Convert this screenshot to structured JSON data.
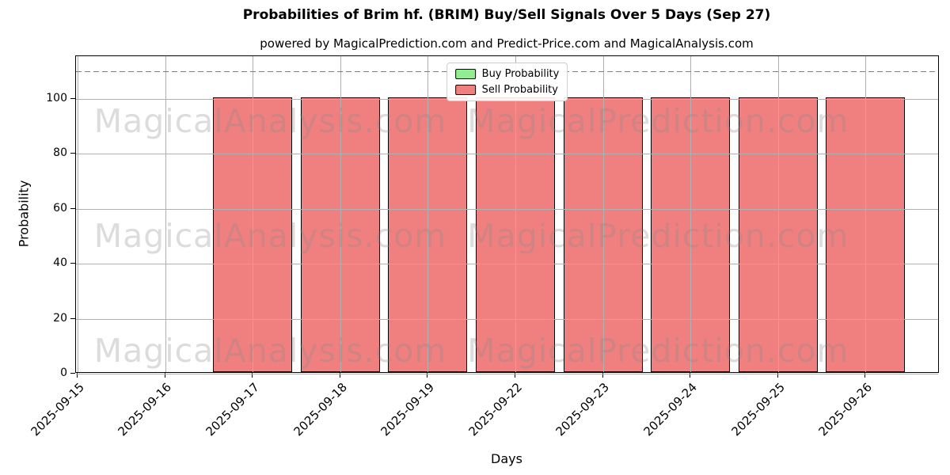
{
  "chart_data": {
    "type": "bar",
    "title": "Probabilities of Brim hf. (BRIM) Buy/Sell Signals Over 5 Days (Sep 27)",
    "subtitle": "powered by MagicalPrediction.com and Predict-Price.com and MagicalAnalysis.com",
    "xlabel": "Days",
    "ylabel": "Probability",
    "categories": [
      "2025-09-15",
      "2025-09-16",
      "2025-09-17",
      "2025-09-18",
      "2025-09-19",
      "2025-09-22",
      "2025-09-23",
      "2025-09-24",
      "2025-09-25",
      "2025-09-26"
    ],
    "series": [
      {
        "name": "Buy Probability",
        "color": "#90ee90",
        "values": [
          0,
          0,
          0,
          0,
          0,
          0,
          0,
          0,
          0,
          0
        ]
      },
      {
        "name": "Sell Probability",
        "color": "#f08080",
        "values": [
          0,
          0,
          100,
          100,
          100,
          100,
          100,
          100,
          100,
          100
        ]
      }
    ],
    "ylim": [
      0,
      115.4
    ],
    "yticks": [
      0,
      20,
      40,
      60,
      80,
      100
    ],
    "dashed_line_y": 110,
    "grid": true,
    "grid_above_bars": true,
    "legend_position": "upper center",
    "colors": {
      "bar_edge": "#000000",
      "grid": "#b0b0b0",
      "dashed_line": "#7f7f7f",
      "watermark": "#8c8c8c"
    }
  },
  "watermarks": [
    "MagicalAnalysis.com",
    "MagicalPrediction.com"
  ]
}
